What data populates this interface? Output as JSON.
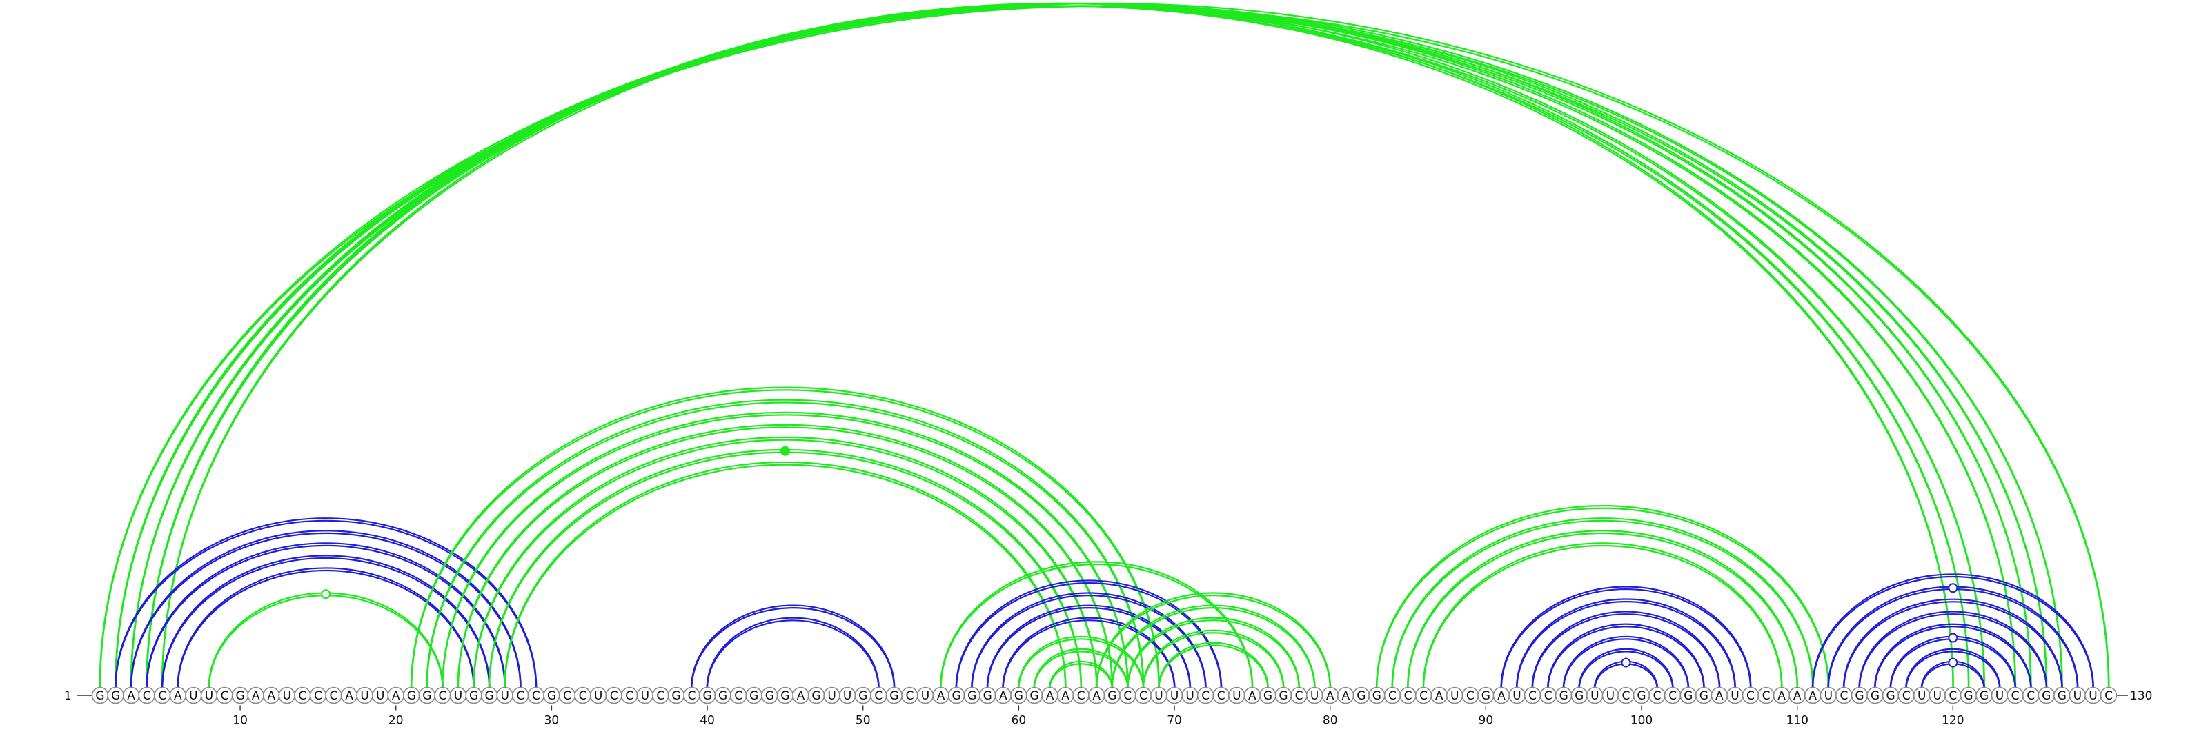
{
  "diagram": {
    "sequence": "GGACCAUUCGAAUCCCAUUAGGCUGGUCCGCCUCCUCGCGGCGGGAGUUGCGCUAGGGAGGAACAGCCUUUCCUAGGCUAAGGCCCAUCGAUCCGGUUCGCCGGAUCCAAAUCGGGCUUCGGUCCGGUUC",
    "length": 130,
    "start_label": "1",
    "end_label": "130",
    "axis_ticks": [
      10,
      20,
      30,
      40,
      50,
      60,
      70,
      80,
      90,
      100,
      110,
      120
    ],
    "colors": {
      "green": "#1ee81e",
      "blue": "#1f1fd6"
    },
    "arcs": [
      {
        "i": 1,
        "j": 130,
        "color": "green"
      },
      {
        "i": 2,
        "j": 127,
        "color": "green"
      },
      {
        "i": 2,
        "j": 126,
        "color": "green"
      },
      {
        "i": 3,
        "j": 125,
        "color": "green"
      },
      {
        "i": 3,
        "j": 124,
        "color": "green"
      },
      {
        "i": 4,
        "j": 122,
        "color": "green"
      },
      {
        "i": 4,
        "j": 121,
        "color": "green"
      },
      {
        "i": 5,
        "j": 120,
        "color": "green"
      },
      {
        "i": 2,
        "j": 29,
        "color": "blue"
      },
      {
        "i": 3,
        "j": 28,
        "color": "blue"
      },
      {
        "i": 4,
        "j": 27,
        "color": "blue"
      },
      {
        "i": 5,
        "j": 26,
        "color": "blue"
      },
      {
        "i": 6,
        "j": 25,
        "color": "blue"
      },
      {
        "i": 8,
        "j": 23,
        "color": "green",
        "mark": "open"
      },
      {
        "i": 21,
        "j": 69,
        "color": "green"
      },
      {
        "i": 22,
        "j": 68,
        "color": "green"
      },
      {
        "i": 23,
        "j": 67,
        "color": "green"
      },
      {
        "i": 24,
        "j": 66,
        "color": "green"
      },
      {
        "i": 25,
        "j": 65,
        "color": "green"
      },
      {
        "i": 26,
        "j": 64,
        "color": "green",
        "mark": "filled"
      },
      {
        "i": 27,
        "j": 63,
        "color": "green"
      },
      {
        "i": 39,
        "j": 52,
        "color": "blue"
      },
      {
        "i": 40,
        "j": 51,
        "color": "blue"
      },
      {
        "i": 55,
        "j": 75,
        "color": "green"
      },
      {
        "i": 56,
        "j": 73,
        "color": "blue"
      },
      {
        "i": 57,
        "j": 72,
        "color": "blue"
      },
      {
        "i": 58,
        "j": 71,
        "color": "blue"
      },
      {
        "i": 59,
        "j": 70,
        "color": "blue"
      },
      {
        "i": 60,
        "j": 68,
        "color": "green"
      },
      {
        "i": 61,
        "j": 67,
        "color": "green"
      },
      {
        "i": 62,
        "j": 66,
        "color": "green"
      },
      {
        "i": 65,
        "j": 80,
        "color": "green"
      },
      {
        "i": 66,
        "j": 79,
        "color": "green"
      },
      {
        "i": 67,
        "j": 78,
        "color": "green"
      },
      {
        "i": 68,
        "j": 77,
        "color": "green"
      },
      {
        "i": 69,
        "j": 76,
        "color": "green"
      },
      {
        "i": 83,
        "j": 112,
        "color": "green"
      },
      {
        "i": 84,
        "j": 111,
        "color": "green"
      },
      {
        "i": 85,
        "j": 110,
        "color": "green"
      },
      {
        "i": 86,
        "j": 109,
        "color": "green"
      },
      {
        "i": 91,
        "j": 107,
        "color": "blue"
      },
      {
        "i": 92,
        "j": 106,
        "color": "blue"
      },
      {
        "i": 93,
        "j": 105,
        "color": "blue"
      },
      {
        "i": 94,
        "j": 104,
        "color": "blue"
      },
      {
        "i": 95,
        "j": 103,
        "color": "blue"
      },
      {
        "i": 96,
        "j": 102,
        "color": "blue"
      },
      {
        "i": 97,
        "j": 101,
        "color": "blue",
        "mark": "open"
      },
      {
        "i": 111,
        "j": 129,
        "color": "blue"
      },
      {
        "i": 112,
        "j": 128,
        "color": "blue",
        "mark": "open"
      },
      {
        "i": 113,
        "j": 127,
        "color": "blue"
      },
      {
        "i": 114,
        "j": 126,
        "color": "blue"
      },
      {
        "i": 115,
        "j": 125,
        "color": "blue"
      },
      {
        "i": 116,
        "j": 124,
        "color": "blue",
        "mark": "open"
      },
      {
        "i": 117,
        "j": 123,
        "color": "blue"
      },
      {
        "i": 118,
        "j": 122,
        "color": "blue",
        "mark": "open"
      }
    ]
  }
}
